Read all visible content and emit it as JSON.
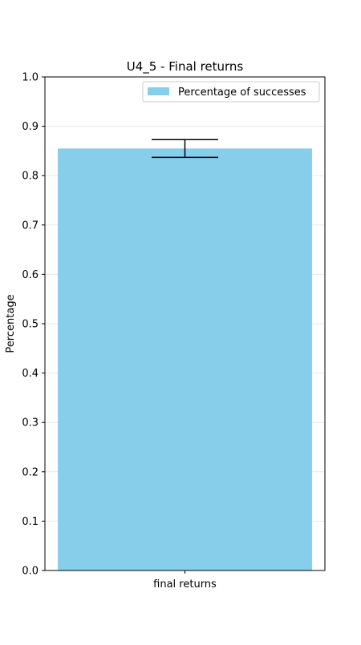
{
  "chart_data": {
    "type": "bar",
    "title": "U4_5 - Final returns",
    "xlabel": "",
    "ylabel": "Percentage",
    "categories": [
      "final returns"
    ],
    "series": [
      {
        "name": "Percentage of successes",
        "values": [
          0.855
        ],
        "error": [
          0.018
        ],
        "color": "#87ceeb"
      }
    ],
    "ylim": [
      0,
      1.0
    ],
    "yticks": [
      "0.0",
      "0.1",
      "0.2",
      "0.3",
      "0.4",
      "0.5",
      "0.6",
      "0.7",
      "0.8",
      "0.9",
      "1.0"
    ],
    "grid": "horizontal",
    "legend_position": "top-right"
  }
}
